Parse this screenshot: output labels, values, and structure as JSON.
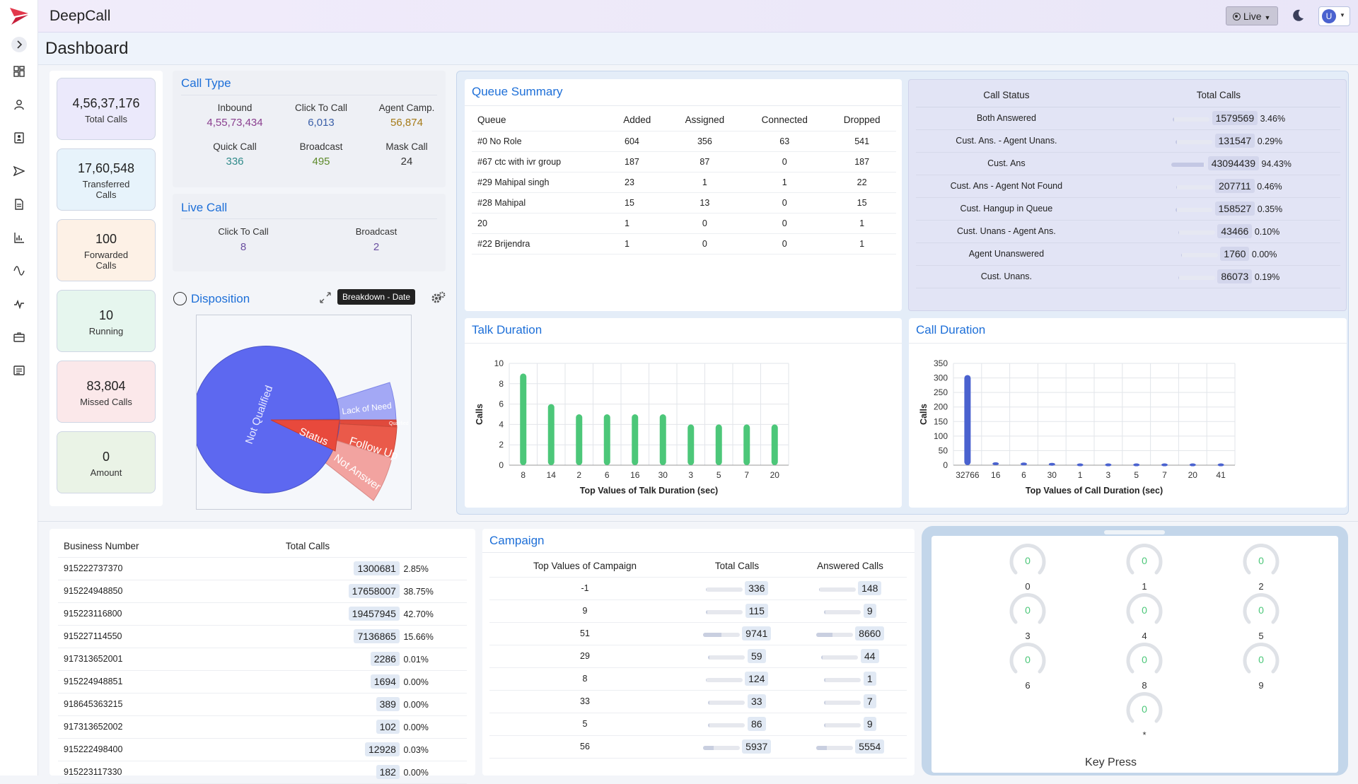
{
  "app": {
    "name": "DeepCall",
    "page_title": "Dashboard",
    "live_label": "Live",
    "avatar_letter": "U"
  },
  "stats": [
    {
      "value": "4,56,37,176",
      "label": "Total Calls",
      "bg": "#ebe9fb"
    },
    {
      "value": "17,60,548",
      "label": "Transferred Calls",
      "bg": "#e7f3fb"
    },
    {
      "value": "100",
      "label": "Forwarded Calls",
      "bg": "#fdf1e6"
    },
    {
      "value": "10",
      "label": "Running",
      "bg": "#e6f6ee"
    },
    {
      "value": "83,804",
      "label": "Missed Calls",
      "bg": "#fbe8ea"
    },
    {
      "value": "0",
      "label": "Amount",
      "bg": "#eaf3e6"
    }
  ],
  "call_type": {
    "title": "Call Type",
    "items": [
      {
        "label": "Inbound",
        "value": "4,55,73,434",
        "color": "#8a3f8f"
      },
      {
        "label": "Click To Call",
        "value": "6,013",
        "color": "#3a5fa8"
      },
      {
        "label": "Agent Camp.",
        "value": "56,874",
        "color": "#a57a17"
      },
      {
        "label": "Quick Call",
        "value": "336",
        "color": "#2f8a8a"
      },
      {
        "label": "Broadcast",
        "value": "495",
        "color": "#5d8a2a"
      },
      {
        "label": "Mask Call",
        "value": "24",
        "color": "#333333"
      }
    ]
  },
  "live_call": {
    "title": "Live Call",
    "items": [
      {
        "label": "Click To Call",
        "value": "8"
      },
      {
        "label": "Broadcast",
        "value": "2"
      }
    ]
  },
  "disposition": {
    "title": "Disposition",
    "breakdown_label": "Breakdown - Date",
    "chart_data": {
      "type": "pie",
      "slices": [
        "Not Qualified",
        "Lack of Need",
        "Qualified",
        "Status",
        "Follow Up",
        "Not Answer"
      ]
    }
  },
  "queue_summary": {
    "title": "Queue Summary",
    "headers": [
      "Queue",
      "Added",
      "Assigned",
      "Connected",
      "Dropped"
    ],
    "rows": [
      [
        "#0 No Role",
        "604",
        "356",
        "63",
        "541"
      ],
      [
        "#67 ctc with ivr group",
        "187",
        "87",
        "0",
        "187"
      ],
      [
        "#29 Mahipal singh",
        "23",
        "1",
        "1",
        "22"
      ],
      [
        "#28 Mahipal",
        "15",
        "13",
        "0",
        "15"
      ],
      [
        "20",
        "1",
        "0",
        "0",
        "1"
      ],
      [
        "#22 Brijendra",
        "1",
        "0",
        "0",
        "1"
      ]
    ]
  },
  "call_status": {
    "headers": [
      "Call Status",
      "Total Calls"
    ],
    "rows": [
      {
        "status": "Both Answered",
        "calls": "1579569",
        "pct": "3.46%",
        "frac": 0.0346
      },
      {
        "status": "Cust. Ans. - Agent Unans.",
        "calls": "131547",
        "pct": "0.29%",
        "frac": 0.0029
      },
      {
        "status": "Cust. Ans",
        "calls": "43094439",
        "pct": "94.43%",
        "frac": 0.9443
      },
      {
        "status": "Cust. Ans - Agent Not Found",
        "calls": "207711",
        "pct": "0.46%",
        "frac": 0.0046
      },
      {
        "status": "Cust. Hangup in Queue",
        "calls": "158527",
        "pct": "0.35%",
        "frac": 0.0035
      },
      {
        "status": "Cust. Unans - Agent Ans.",
        "calls": "43466",
        "pct": "0.10%",
        "frac": 0.001
      },
      {
        "status": "Agent Unanswered",
        "calls": "1760",
        "pct": "0.00%",
        "frac": 0
      },
      {
        "status": "Cust. Unans.",
        "calls": "86073",
        "pct": "0.19%",
        "frac": 0.0019
      }
    ]
  },
  "talk_duration": {
    "title": "Talk Duration",
    "chart_data": {
      "type": "bar",
      "categories": [
        "8",
        "14",
        "2",
        "6",
        "16",
        "30",
        "3",
        "5",
        "7",
        "20"
      ],
      "values": [
        9,
        6,
        5,
        5,
        5,
        5,
        4,
        4,
        4,
        4
      ],
      "xlabel": "Top Values of Talk Duration (sec)",
      "ylabel": "Calls",
      "ylim": [
        0,
        10
      ],
      "yticks": [
        0,
        2,
        4,
        6,
        8,
        10
      ],
      "color": "#4cc779"
    }
  },
  "call_duration": {
    "title": "Call Duration",
    "chart_data": {
      "type": "bar",
      "categories": [
        "32766",
        "16",
        "6",
        "30",
        "1",
        "3",
        "5",
        "7",
        "20",
        "41"
      ],
      "values": [
        310,
        10,
        9,
        8,
        6,
        6,
        6,
        6,
        6,
        6
      ],
      "xlabel": "Top Values of Call Duration (sec)",
      "ylabel": "Calls",
      "ylim": [
        0,
        350
      ],
      "yticks": [
        0,
        50,
        100,
        150,
        200,
        250,
        300,
        350
      ],
      "color": "#4a62cf"
    }
  },
  "business": {
    "headers": [
      "Business Number",
      "Total Calls"
    ],
    "rows": [
      {
        "num": "915222737370",
        "calls": "1300681",
        "pct": "2.85%"
      },
      {
        "num": "915224948850",
        "calls": "17658007",
        "pct": "38.75%"
      },
      {
        "num": "915223116800",
        "calls": "19457945",
        "pct": "42.70%"
      },
      {
        "num": "915227114550",
        "calls": "7136865",
        "pct": "15.66%"
      },
      {
        "num": "917313652001",
        "calls": "2286",
        "pct": "0.01%"
      },
      {
        "num": "915224948851",
        "calls": "1694",
        "pct": "0.00%"
      },
      {
        "num": "918645363215",
        "calls": "389",
        "pct": "0.00%"
      },
      {
        "num": "917313652002",
        "calls": "102",
        "pct": "0.00%"
      },
      {
        "num": "915222498400",
        "calls": "12928",
        "pct": "0.03%"
      },
      {
        "num": "915223117330",
        "calls": "182",
        "pct": "0.00%"
      }
    ]
  },
  "campaign": {
    "title": "Campaign",
    "headers": [
      "Top Values of Campaign",
      "Total Calls",
      "Answered Calls"
    ],
    "rows": [
      {
        "c": "-1",
        "t": "336",
        "a": "148",
        "tf": 0.03,
        "af": 0.02
      },
      {
        "c": "9",
        "t": "115",
        "a": "9",
        "tf": 0.01,
        "af": 0.0
      },
      {
        "c": "51",
        "t": "9741",
        "a": "8660",
        "tf": 0.5,
        "af": 0.45
      },
      {
        "c": "29",
        "t": "59",
        "a": "44",
        "tf": 0.01,
        "af": 0.01
      },
      {
        "c": "8",
        "t": "124",
        "a": "1",
        "tf": 0.01,
        "af": 0.0
      },
      {
        "c": "33",
        "t": "33",
        "a": "7",
        "tf": 0.0,
        "af": 0.0
      },
      {
        "c": "5",
        "t": "86",
        "a": "9",
        "tf": 0.01,
        "af": 0.0
      },
      {
        "c": "56",
        "t": "5937",
        "a": "5554",
        "tf": 0.3,
        "af": 0.29
      }
    ]
  },
  "key_press": {
    "title": "Key Press",
    "keys": [
      {
        "key": "0",
        "value": "0"
      },
      {
        "key": "1",
        "value": "0"
      },
      {
        "key": "2",
        "value": "0"
      },
      {
        "key": "3",
        "value": "0"
      },
      {
        "key": "4",
        "value": "0"
      },
      {
        "key": "5",
        "value": "0"
      },
      {
        "key": "6",
        "value": "0"
      },
      {
        "key": "8",
        "value": "0"
      },
      {
        "key": "9",
        "value": "0"
      },
      {
        "key": "*",
        "value": "0"
      }
    ]
  }
}
